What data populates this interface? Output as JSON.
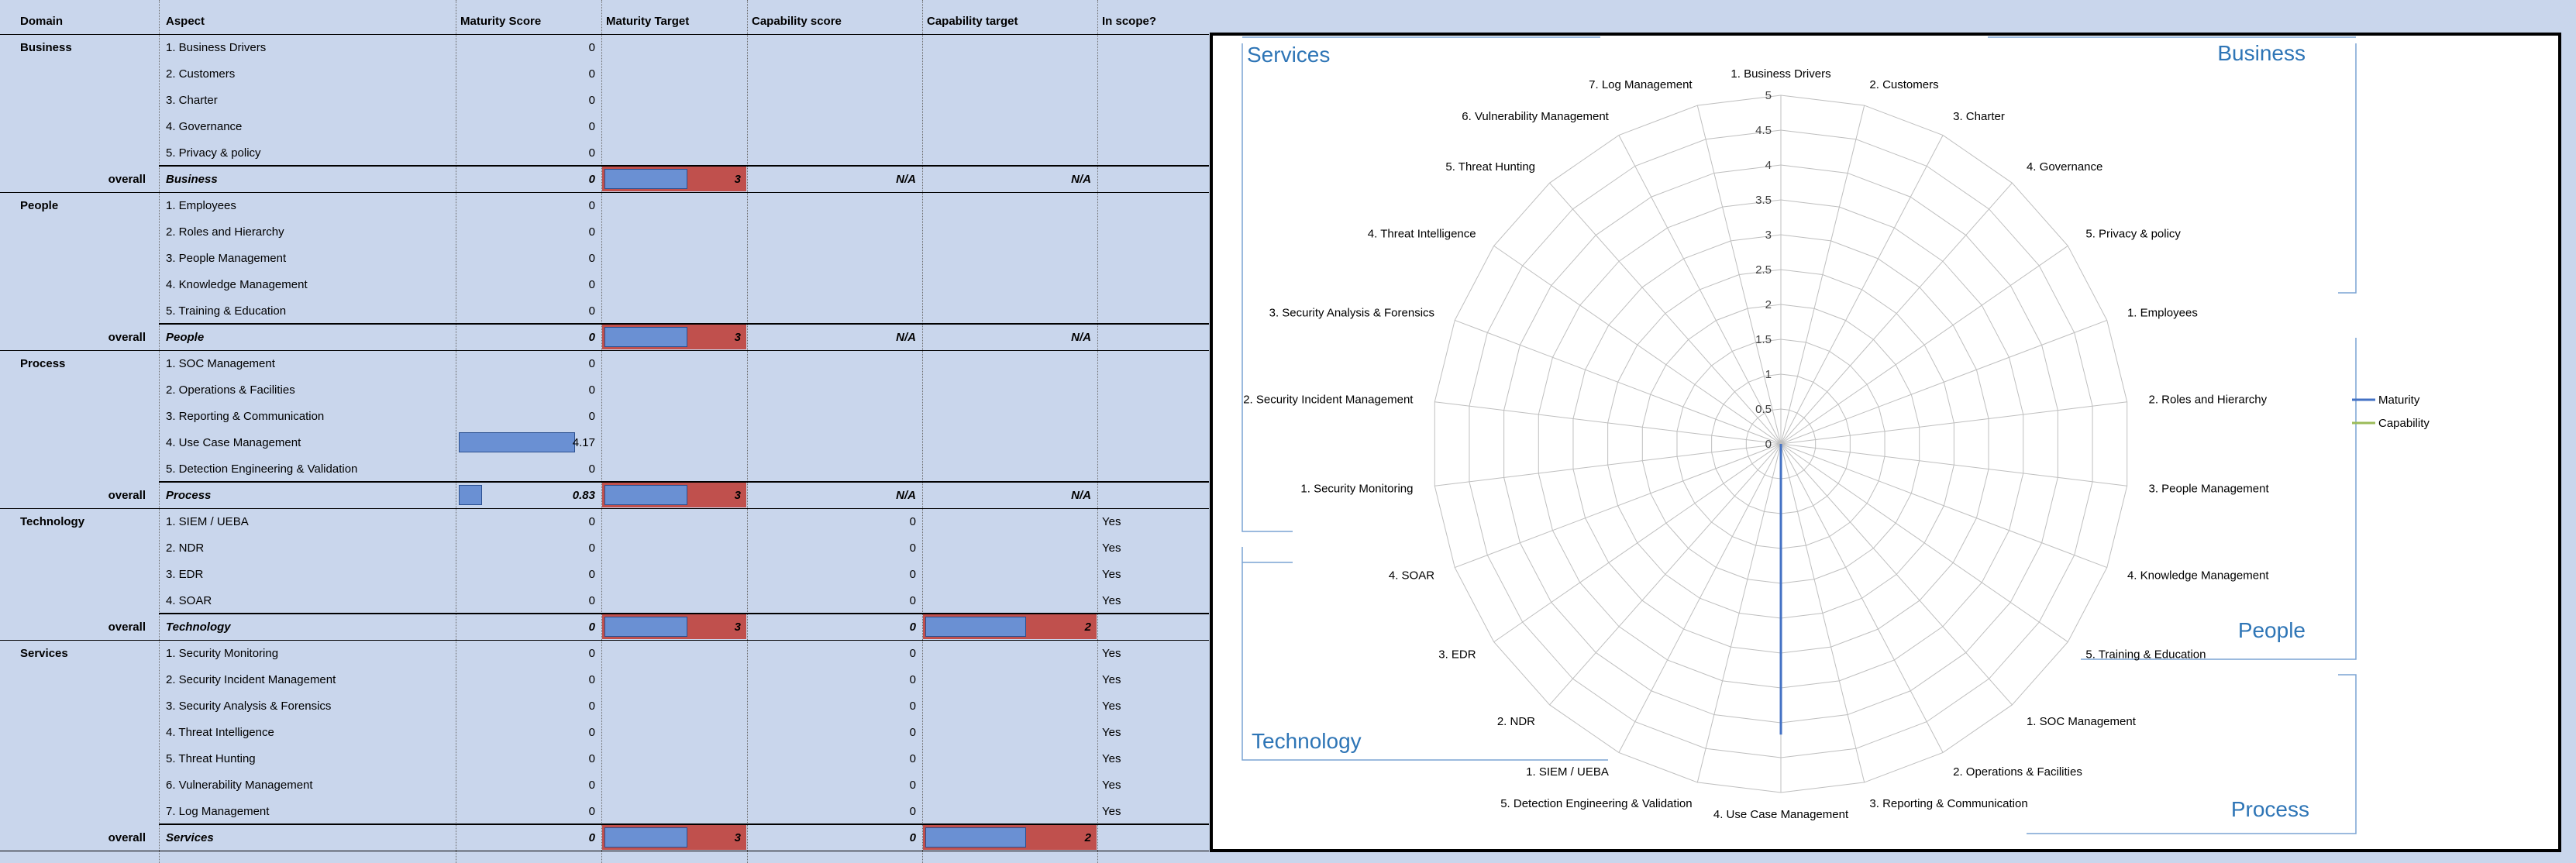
{
  "headers": {
    "domain": "Domain",
    "aspect": "Aspect",
    "maturity_score": "Maturity Score",
    "maturity_target": "Maturity Target",
    "capability_score": "Capability score",
    "capability_target": "Capability target",
    "in_scope": "In scope?"
  },
  "domains": [
    {
      "name": "Business",
      "aspects": [
        {
          "label": "1. Business Drivers",
          "maturity": "0",
          "capability": "",
          "in_scope": ""
        },
        {
          "label": "2. Customers",
          "maturity": "0",
          "capability": "",
          "in_scope": ""
        },
        {
          "label": "3. Charter",
          "maturity": "0",
          "capability": "",
          "in_scope": ""
        },
        {
          "label": "4. Governance",
          "maturity": "0",
          "capability": "",
          "in_scope": ""
        },
        {
          "label": "5. Privacy & policy",
          "maturity": "0",
          "capability": "",
          "in_scope": ""
        }
      ],
      "overall": {
        "label": "overall",
        "name": "Business",
        "maturity": "0",
        "maturity_target": "3",
        "capability": "N/A",
        "capability_target": "N/A",
        "maturity_fraction": 0,
        "capability_target_value": null
      }
    },
    {
      "name": "People",
      "aspects": [
        {
          "label": "1. Employees",
          "maturity": "0",
          "capability": "",
          "in_scope": ""
        },
        {
          "label": "2. Roles and Hierarchy",
          "maturity": "0",
          "capability": "",
          "in_scope": ""
        },
        {
          "label": "3. People Management",
          "maturity": "0",
          "capability": "",
          "in_scope": ""
        },
        {
          "label": "4. Knowledge Management",
          "maturity": "0",
          "capability": "",
          "in_scope": ""
        },
        {
          "label": "5. Training & Education",
          "maturity": "0",
          "capability": "",
          "in_scope": ""
        }
      ],
      "overall": {
        "label": "overall",
        "name": "People",
        "maturity": "0",
        "maturity_target": "3",
        "capability": "N/A",
        "capability_target": "N/A",
        "maturity_fraction": 0,
        "capability_target_value": null
      }
    },
    {
      "name": "Process",
      "aspects": [
        {
          "label": "1. SOC Management",
          "maturity": "0",
          "capability": "",
          "in_scope": ""
        },
        {
          "label": "2. Operations & Facilities",
          "maturity": "0",
          "capability": "",
          "in_scope": ""
        },
        {
          "label": "3. Reporting & Communication",
          "maturity": "0",
          "capability": "",
          "in_scope": ""
        },
        {
          "label": "4. Use Case Management",
          "maturity": "4.17",
          "capability": "",
          "in_scope": ""
        },
        {
          "label": "5. Detection Engineering & Validation",
          "maturity": "0",
          "capability": "",
          "in_scope": ""
        }
      ],
      "overall": {
        "label": "overall",
        "name": "Process",
        "maturity": "0.83",
        "maturity_target": "3",
        "capability": "N/A",
        "capability_target": "N/A",
        "maturity_fraction": 0.166,
        "capability_target_value": null
      }
    },
    {
      "name": "Technology",
      "aspects": [
        {
          "label": "1. SIEM / UEBA",
          "maturity": "0",
          "capability": "0",
          "in_scope": "Yes"
        },
        {
          "label": "2. NDR",
          "maturity": "0",
          "capability": "0",
          "in_scope": "Yes"
        },
        {
          "label": "3. EDR",
          "maturity": "0",
          "capability": "0",
          "in_scope": "Yes"
        },
        {
          "label": "4. SOAR",
          "maturity": "0",
          "capability": "0",
          "in_scope": "Yes"
        }
      ],
      "overall": {
        "label": "overall",
        "name": "Technology",
        "maturity": "0",
        "maturity_target": "3",
        "capability": "0",
        "capability_target": "2",
        "maturity_fraction": 0,
        "capability_target_value": 2
      }
    },
    {
      "name": "Services",
      "aspects": [
        {
          "label": "1. Security Monitoring",
          "maturity": "0",
          "capability": "0",
          "in_scope": "Yes"
        },
        {
          "label": "2. Security Incident Management",
          "maturity": "0",
          "capability": "0",
          "in_scope": "Yes"
        },
        {
          "label": "3. Security Analysis & Forensics",
          "maturity": "0",
          "capability": "0",
          "in_scope": "Yes"
        },
        {
          "label": "4. Threat Intelligence",
          "maturity": "0",
          "capability": "0",
          "in_scope": "Yes"
        },
        {
          "label": "5. Threat Hunting",
          "maturity": "0",
          "capability": "0",
          "in_scope": "Yes"
        },
        {
          "label": "6. Vulnerability Management",
          "maturity": "0",
          "capability": "0",
          "in_scope": "Yes"
        },
        {
          "label": "7. Log Management",
          "maturity": "0",
          "capability": "0",
          "in_scope": "Yes"
        }
      ],
      "overall": {
        "label": "overall",
        "name": "Services",
        "maturity": "0",
        "maturity_target": "3",
        "capability": "0",
        "capability_target": "2",
        "maturity_fraction": 0,
        "capability_target_value": 2
      }
    }
  ],
  "databar_values": {
    "use_case_management_fraction": 0.834,
    "maturity_target_fraction": 0.6,
    "capability_target_fraction": 0.6
  },
  "chart_data": {
    "type": "radar",
    "categories": [
      "1. Business Drivers",
      "2. Customers",
      "3. Charter",
      "4. Governance",
      "5. Privacy & policy",
      "1. Employees",
      "2. Roles and Hierarchy",
      "3. People Management",
      "4. Knowledge Management",
      "5. Training & Education",
      "1. SOC Management",
      "2. Operations & Facilities",
      "3. Reporting & Communication",
      "4. Use Case Management",
      "5. Detection Engineering & Validation",
      "1. SIEM / UEBA",
      "2. NDR",
      "3. EDR",
      "4. SOAR",
      "1. Security Monitoring",
      "2. Security Incident Management",
      "3. Security Analysis & Forensics",
      "4. Threat Intelligence",
      "5. Threat Hunting",
      "6. Vulnerability Management",
      "7. Log Management"
    ],
    "series": [
      {
        "name": "Maturity",
        "color": "#4472c4",
        "values": [
          0,
          0,
          0,
          0,
          0,
          0,
          0,
          0,
          0,
          0,
          0,
          0,
          0,
          4.17,
          0,
          0,
          0,
          0,
          0,
          0,
          0,
          0,
          0,
          0,
          0,
          0
        ]
      },
      {
        "name": "Capability",
        "color": "#9bbb59",
        "values": [
          0,
          0,
          0,
          0,
          0,
          0,
          0,
          0,
          0,
          0,
          0,
          0,
          0,
          0,
          0,
          0,
          0,
          0,
          0,
          0,
          0,
          0,
          0,
          0,
          0,
          0
        ]
      }
    ],
    "rmax": 5,
    "ticks": [
      "0",
      "0.5",
      "1",
      "1.5",
      "2",
      "2.5",
      "3",
      "3.5",
      "4",
      "4.5",
      "5"
    ],
    "legend_position": "right",
    "group_labels": [
      "Services",
      "Business",
      "People",
      "Technology",
      "Process"
    ],
    "accent": "#2e75b6"
  }
}
